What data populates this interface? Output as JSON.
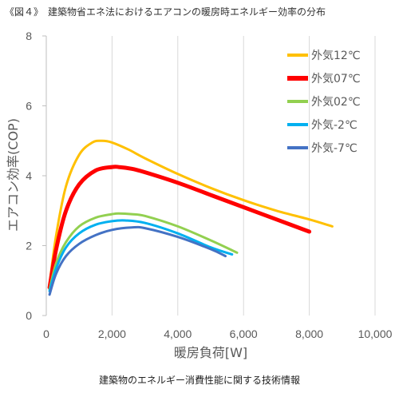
{
  "figure": {
    "title": "《図４》　建築物省エネ法におけるエアコンの暖房時エネルギー効率の分布",
    "caption": "建築物のエネルギー消費性能に関する技術情報"
  },
  "chart_data": {
    "type": "line",
    "xlabel": "暖房負荷[W]",
    "ylabel": "エアコン効率(COP)",
    "xlim": [
      0,
      10000
    ],
    "ylim": [
      0,
      8
    ],
    "xticks": [
      0,
      2000,
      4000,
      6000,
      8000,
      10000
    ],
    "xtick_labels": [
      "0",
      "2,000",
      "4,000",
      "6,000",
      "8,000",
      "10,000"
    ],
    "yticks": [
      0,
      2,
      4,
      6,
      8
    ],
    "ytick_labels": [
      "0",
      "2",
      "4",
      "6",
      "8"
    ],
    "grid": "vertical",
    "legend_position": "top-right",
    "series": [
      {
        "name": "外気12℃",
        "color": "#FFC000",
        "stroke": 3,
        "x": [
          100,
          300,
          600,
          1000,
          1400,
          1700,
          2000,
          2500,
          3000,
          4000,
          5000,
          6000,
          7000,
          8000,
          8700
        ],
        "y": [
          0.9,
          2.3,
          3.7,
          4.6,
          4.95,
          5.0,
          4.95,
          4.75,
          4.5,
          4.05,
          3.65,
          3.3,
          3.0,
          2.75,
          2.55
        ]
      },
      {
        "name": "外気07℃",
        "color": "#FF0000",
        "stroke": 5,
        "x": [
          100,
          300,
          600,
          1000,
          1500,
          2000,
          2200,
          2600,
          3000,
          4000,
          5000,
          6000,
          7000,
          8000
        ],
        "y": [
          0.8,
          1.9,
          3.0,
          3.75,
          4.15,
          4.25,
          4.25,
          4.2,
          4.1,
          3.8,
          3.45,
          3.1,
          2.75,
          2.4
        ]
      },
      {
        "name": "外気02℃",
        "color": "#92D050",
        "stroke": 3,
        "x": [
          100,
          300,
          600,
          1000,
          1500,
          2000,
          2200,
          2600,
          3000,
          4000,
          5000,
          5800
        ],
        "y": [
          0.75,
          1.5,
          2.1,
          2.55,
          2.8,
          2.9,
          2.92,
          2.9,
          2.85,
          2.55,
          2.15,
          1.8
        ]
      },
      {
        "name": "外気-2℃",
        "color": "#00B0F0",
        "stroke": 3,
        "x": [
          100,
          300,
          600,
          1000,
          1500,
          2000,
          2400,
          3000,
          4000,
          5000,
          5650
        ],
        "y": [
          0.7,
          1.35,
          1.95,
          2.35,
          2.6,
          2.7,
          2.72,
          2.65,
          2.35,
          1.95,
          1.75
        ]
      },
      {
        "name": "外気-7℃",
        "color": "#4472C4",
        "stroke": 3,
        "x": [
          100,
          300,
          600,
          1000,
          1500,
          2000,
          2600,
          3000,
          4000,
          5000,
          5450
        ],
        "y": [
          0.6,
          1.2,
          1.7,
          2.05,
          2.3,
          2.45,
          2.52,
          2.5,
          2.25,
          1.9,
          1.7
        ]
      }
    ]
  }
}
